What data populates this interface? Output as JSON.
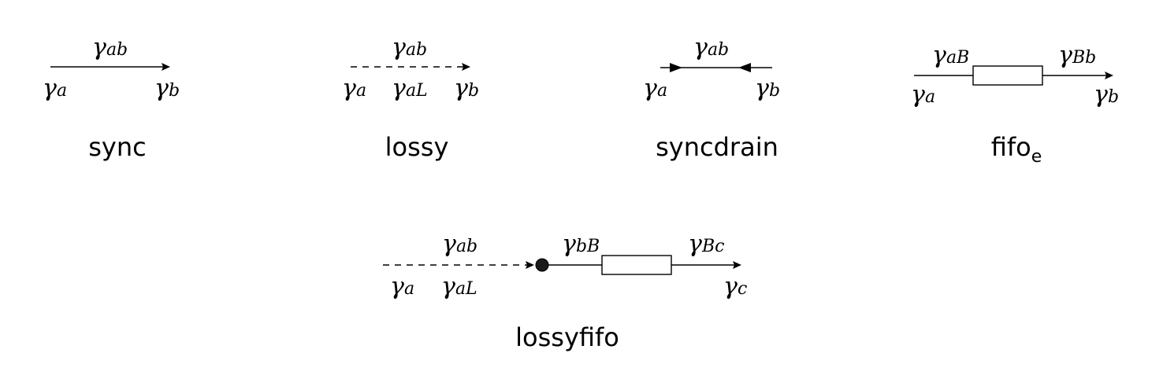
{
  "diagrams": [
    {
      "caption": "sync",
      "caption_sub": "",
      "labels": {
        "ab": [
          "γ",
          "ab"
        ],
        "a": [
          "γ",
          "a"
        ],
        "b": [
          "γ",
          "b"
        ]
      }
    },
    {
      "caption": "lossy",
      "caption_sub": "",
      "labels": {
        "ab": [
          "γ",
          "ab"
        ],
        "a": [
          "γ",
          "a"
        ],
        "aL": [
          "γ",
          "aL"
        ],
        "b": [
          "γ",
          "b"
        ]
      }
    },
    {
      "caption": "syncdrain",
      "caption_sub": "",
      "labels": {
        "ab": [
          "γ",
          "ab"
        ],
        "a": [
          "γ",
          "a"
        ],
        "b": [
          "γ",
          "b"
        ]
      }
    },
    {
      "caption": "fifo",
      "caption_sub": "e",
      "labels": {
        "aB": [
          "γ",
          "aB"
        ],
        "Bb": [
          "γ",
          "Bb"
        ],
        "a": [
          "γ",
          "a"
        ],
        "b": [
          "γ",
          "b"
        ]
      }
    },
    {
      "caption": "lossyfifo",
      "caption_sub": "",
      "labels": {
        "ab": [
          "γ",
          "ab"
        ],
        "bB": [
          "γ",
          "bB"
        ],
        "Bc": [
          "γ",
          "Bc"
        ],
        "a": [
          "γ",
          "a"
        ],
        "aL": [
          "γ",
          "aL"
        ],
        "c": [
          "γ",
          "c"
        ]
      }
    }
  ]
}
